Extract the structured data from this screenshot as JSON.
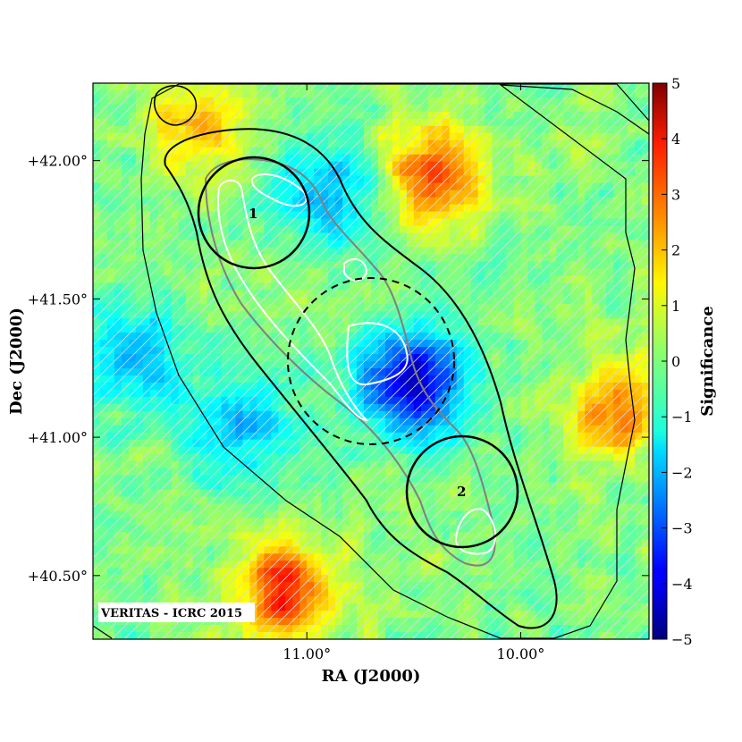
{
  "chart_data": {
    "type": "heatmap",
    "title": "",
    "xlabel": "RA (J2000)",
    "ylabel": "Dec (J2000)",
    "x_ticks": [
      {
        "value": 11.0,
        "label": "11.00°"
      },
      {
        "value": 10.0,
        "label": "10.00°"
      }
    ],
    "y_ticks": [
      {
        "value": 42.0,
        "label": "+42.00°"
      },
      {
        "value": 41.5,
        "label": "+41.50°"
      },
      {
        "value": 41.0,
        "label": "+41.00°"
      },
      {
        "value": 40.5,
        "label": "+40.50°"
      }
    ],
    "xlim": [
      12.0,
      9.4
    ],
    "ylim": [
      40.27,
      42.28
    ],
    "x_inverted": true,
    "colorbar": {
      "label": "Significance",
      "range": [
        -5,
        5
      ],
      "ticks": [
        "−5",
        "−4",
        "−3",
        "−2",
        "−1",
        "0",
        "1",
        "2",
        "3",
        "4",
        "5"
      ],
      "colormap": "jet"
    },
    "features": [
      {
        "kind": "positive-hotspot",
        "ra": 10.4,
        "dec": 41.95,
        "peak_significance": 3.0
      },
      {
        "kind": "positive-hotspot",
        "ra": 11.1,
        "dec": 40.45,
        "peak_significance": 3.5
      },
      {
        "kind": "positive-hotspot",
        "ra": 9.55,
        "dec": 41.1,
        "peak_significance": 2.5
      },
      {
        "kind": "positive-hotspot",
        "ra": 11.5,
        "dec": 42.1,
        "peak_significance": 2.0
      },
      {
        "kind": "negative-hotspot",
        "ra": 10.5,
        "dec": 41.2,
        "peak_significance": -4.2
      },
      {
        "kind": "negative-hotspot",
        "ra": 10.9,
        "dec": 41.88,
        "peak_significance": -2.0
      },
      {
        "kind": "negative-hotspot",
        "ra": 11.8,
        "dec": 41.3,
        "peak_significance": -2.0
      },
      {
        "kind": "negative-hotspot",
        "ra": 11.3,
        "dec": 41.05,
        "peak_significance": -2.0
      }
    ],
    "regions": [
      {
        "label": "1",
        "ra": 11.23,
        "dec": 41.79,
        "radius_deg": 0.2,
        "style": "solid"
      },
      {
        "label": "2",
        "ra": 9.97,
        "dec": 40.8,
        "radius_deg": 0.2,
        "style": "solid"
      },
      {
        "label": "",
        "ra": 10.68,
        "dec": 41.27,
        "radius_deg": 0.3,
        "style": "dashed"
      }
    ],
    "grid": false,
    "legend": "none"
  },
  "watermark": "VERITAS - ICRC 2015",
  "colors": {
    "contour_outer": "#000000",
    "contour_grey": "#808080",
    "contour_white": "#ffffff",
    "hatch": "#e6e6e6"
  }
}
